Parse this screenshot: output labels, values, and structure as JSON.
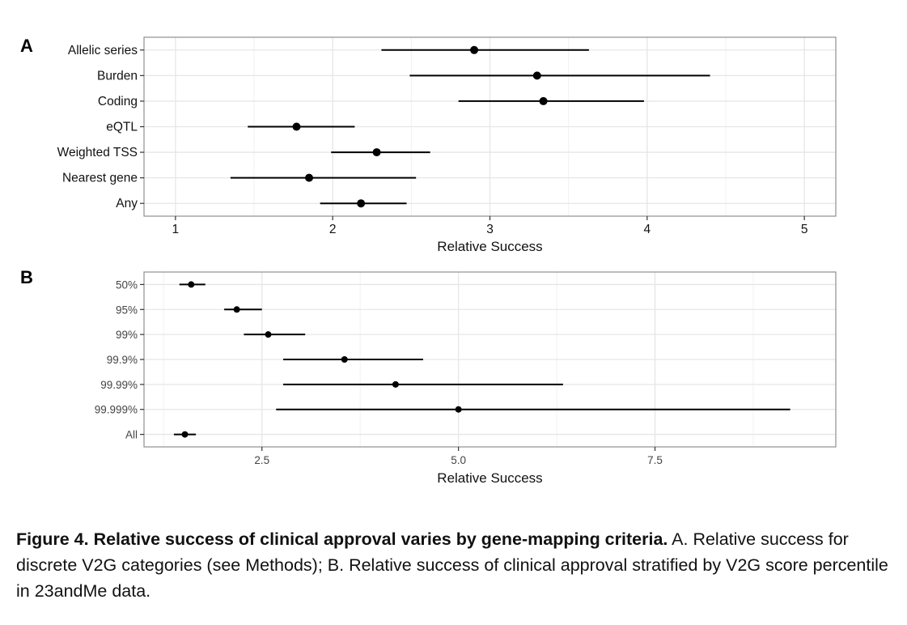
{
  "colors": {
    "panel_border": "#8f8f8f",
    "grid": "#e6e6e6",
    "mark": "#000000",
    "tick_text": "#444444",
    "axis_text": "#222222"
  },
  "chart_data": [
    {
      "type": "forest",
      "panel_label": "A",
      "title": "",
      "xlabel": "Relative Success",
      "xlim": [
        0.8,
        5.2
      ],
      "xticks": [
        1,
        2,
        3,
        4,
        5
      ],
      "xtick_labels": [
        "1",
        "2",
        "3",
        "4",
        "5"
      ],
      "grid": true,
      "categories": [
        "Allelic series",
        "Burden",
        "Coding",
        "eQTL",
        "Weighted TSS",
        "Nearest gene",
        "Any"
      ],
      "estimate": [
        2.9,
        3.3,
        3.34,
        1.77,
        2.28,
        1.85,
        2.18
      ],
      "lower": [
        2.31,
        2.49,
        2.8,
        1.46,
        1.99,
        1.35,
        1.92
      ],
      "upper": [
        3.63,
        4.4,
        3.98,
        2.14,
        2.62,
        2.53,
        2.47
      ]
    },
    {
      "type": "forest",
      "panel_label": "B",
      "title": "",
      "xlabel": "Relative Success",
      "xlim": [
        1.0,
        9.8
      ],
      "xticks": [
        2.5,
        5.0,
        7.5
      ],
      "xtick_labels": [
        "2.5",
        "5.0",
        "7.5"
      ],
      "grid": true,
      "categories": [
        "50%",
        "95%",
        "99%",
        "99.9%",
        "99.99%",
        "99.999%",
        "All"
      ],
      "estimate": [
        1.6,
        2.18,
        2.58,
        3.55,
        4.2,
        5.0,
        1.52
      ],
      "lower": [
        1.45,
        2.02,
        2.27,
        2.77,
        2.77,
        2.68,
        1.38
      ],
      "upper": [
        1.78,
        2.5,
        3.05,
        4.55,
        6.33,
        9.22,
        1.66
      ]
    }
  ],
  "caption": {
    "bold": "Figure 4. Relative success of clinical approval varies by gene-mapping criteria.",
    "text": " A. Relative success for discrete V2G categories (see Methods); B. Relative success of clinical approval stratified by V2G score percentile in 23andMe data."
  }
}
